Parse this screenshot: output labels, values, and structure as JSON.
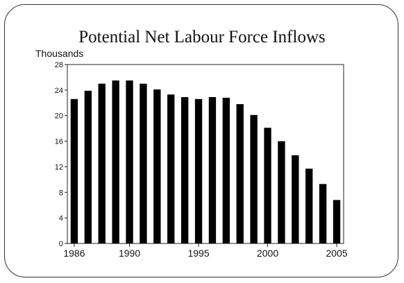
{
  "chart_data": {
    "type": "bar",
    "title": "Potential Net Labour Force Inflows",
    "ylabel": "Thousands",
    "xlabel": "",
    "categories": [
      1986,
      1987,
      1988,
      1989,
      1990,
      1991,
      1992,
      1993,
      1994,
      1995,
      1996,
      1997,
      1998,
      1999,
      2000,
      2001,
      2002,
      2003,
      2004,
      2005
    ],
    "values": [
      22.6,
      23.9,
      25.0,
      25.5,
      25.5,
      25.0,
      24.1,
      23.3,
      22.9,
      22.6,
      22.9,
      22.8,
      21.8,
      20.1,
      18.1,
      16.0,
      13.8,
      11.7,
      9.3,
      6.8
    ],
    "ylim": [
      0,
      28
    ],
    "yticks": [
      0,
      4,
      8,
      12,
      16,
      20,
      24,
      28
    ],
    "xticks": [
      1986,
      1990,
      1995,
      2000,
      2005
    ],
    "bar_color": "#000000",
    "grid": false,
    "legend": "none"
  }
}
